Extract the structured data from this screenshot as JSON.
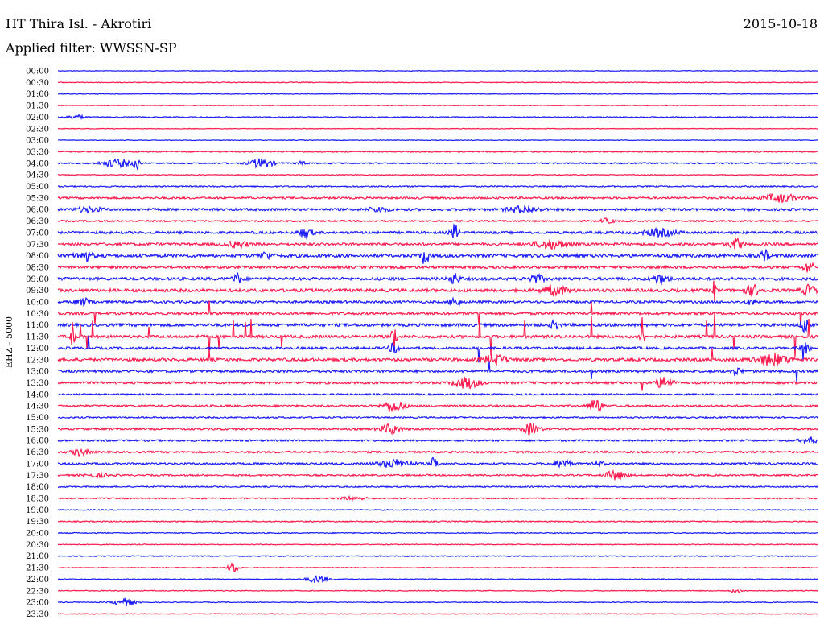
{
  "header": {
    "station": "HT Thira Isl. - Akrotiri",
    "date": "2015-10-18",
    "filter": "Applied filter: WWSSN-SP"
  },
  "chart_data": {
    "type": "line",
    "title": "HT Thira Isl. - Akrotiri",
    "ylabel": "EHZ - 5000",
    "row_labels": [
      "00:00",
      "00:30",
      "01:00",
      "01:30",
      "02:00",
      "02:30",
      "03:00",
      "03:30",
      "04:00",
      "04:30",
      "05:00",
      "05:30",
      "06:00",
      "06:30",
      "07:00",
      "07:30",
      "08:00",
      "08:30",
      "09:00",
      "09:30",
      "10:00",
      "10:30",
      "11:00",
      "11:30",
      "12:00",
      "12:30",
      "13:00",
      "13:30",
      "14:00",
      "14:30",
      "15:00",
      "15:30",
      "16:00",
      "16:30",
      "17:00",
      "17:30",
      "18:00",
      "18:30",
      "19:00",
      "19:30",
      "20:00",
      "20:30",
      "21:00",
      "21:30",
      "22:00",
      "22:30",
      "23:00",
      "23:30"
    ],
    "colors": {
      "even": "#1a1aff",
      "odd": "#ff1a4d"
    },
    "noise_level": [
      0.4,
      0.5,
      0.4,
      0.4,
      0.6,
      0.4,
      0.4,
      0.7,
      0.8,
      0.5,
      0.8,
      1.2,
      1.5,
      1.0,
      1.5,
      1.6,
      2.0,
      1.6,
      1.8,
      1.9,
      1.5,
      1.5,
      1.8,
      1.8,
      1.5,
      1.8,
      1.5,
      1.4,
      1.0,
      1.2,
      0.9,
      1.2,
      1.1,
      1.2,
      1.2,
      1.0,
      0.8,
      0.8,
      0.6,
      0.7,
      0.6,
      0.5,
      0.6,
      0.5,
      0.5,
      0.5,
      0.5,
      0.5
    ],
    "events": [
      [
        4,
        95,
        2.5,
        10
      ],
      [
        8,
        145,
        5,
        18
      ],
      [
        8,
        170,
        12,
        3
      ],
      [
        8,
        325,
        6,
        14
      ],
      [
        8,
        375,
        2,
        6
      ],
      [
        11,
        970,
        5,
        20
      ],
      [
        12,
        110,
        3,
        15
      ],
      [
        12,
        470,
        3,
        12
      ],
      [
        12,
        650,
        4,
        18
      ],
      [
        13,
        755,
        3,
        8
      ],
      [
        14,
        380,
        6,
        8
      ],
      [
        14,
        565,
        10,
        5
      ],
      [
        14,
        820,
        4,
        20
      ],
      [
        15,
        295,
        4,
        12
      ],
      [
        15,
        685,
        5,
        20
      ],
      [
        15,
        915,
        7,
        8
      ],
      [
        16,
        105,
        6,
        10
      ],
      [
        16,
        330,
        4,
        8
      ],
      [
        16,
        528,
        10,
        5
      ],
      [
        16,
        950,
        6,
        6
      ],
      [
        17,
        1005,
        7,
        6
      ],
      [
        18,
        295,
        7,
        5
      ],
      [
        18,
        565,
        7,
        6
      ],
      [
        18,
        665,
        5,
        10
      ],
      [
        18,
        820,
        5,
        10
      ],
      [
        19,
        690,
        6,
        15
      ],
      [
        19,
        935,
        6,
        10
      ],
      [
        19,
        1005,
        6,
        8
      ],
      [
        19,
        888,
        14,
        2
      ],
      [
        20,
        565,
        6,
        6
      ],
      [
        20,
        105,
        4,
        10
      ],
      [
        20,
        935,
        3,
        8
      ],
      [
        22,
        690,
        5,
        6
      ],
      [
        22,
        1000,
        10,
        5
      ],
      [
        23,
        490,
        14,
        3
      ],
      [
        23,
        798,
        12,
        3
      ],
      [
        23,
        90,
        10,
        3
      ],
      [
        24,
        490,
        6,
        6
      ],
      [
        24,
        1000,
        6,
        6
      ],
      [
        25,
        615,
        6,
        14
      ],
      [
        25,
        960,
        7,
        20
      ],
      [
        26,
        915,
        5,
        6
      ],
      [
        27,
        580,
        7,
        15
      ],
      [
        27,
        825,
        7,
        10
      ],
      [
        29,
        490,
        7,
        12
      ],
      [
        29,
        740,
        9,
        8
      ],
      [
        31,
        485,
        6,
        12
      ],
      [
        31,
        660,
        7,
        10
      ],
      [
        32,
        1005,
        4,
        10
      ],
      [
        33,
        100,
        4,
        10
      ],
      [
        34,
        490,
        5,
        20
      ],
      [
        34,
        540,
        9,
        4
      ],
      [
        34,
        700,
        5,
        10
      ],
      [
        34,
        745,
        3,
        6
      ],
      [
        35,
        765,
        6,
        12
      ],
      [
        35,
        120,
        2,
        16
      ],
      [
        37,
        440,
        2,
        15
      ],
      [
        43,
        290,
        7,
        6
      ],
      [
        44,
        395,
        5,
        12
      ],
      [
        45,
        915,
        2,
        8
      ],
      [
        46,
        155,
        5,
        12
      ]
    ],
    "spikes": [
      [
        23,
        90,
        18
      ],
      [
        23,
        100,
        14
      ],
      [
        23,
        108,
        16
      ],
      [
        23,
        115,
        20
      ],
      [
        23,
        185,
        12
      ],
      [
        23,
        260,
        22
      ],
      [
        23,
        272,
        16
      ],
      [
        23,
        290,
        20
      ],
      [
        23,
        305,
        18
      ],
      [
        23,
        312,
        22
      ],
      [
        23,
        350,
        14
      ],
      [
        23,
        490,
        18
      ],
      [
        23,
        596,
        28
      ],
      [
        23,
        610,
        24
      ],
      [
        23,
        652,
        20
      ],
      [
        23,
        735,
        26
      ],
      [
        23,
        798,
        24
      ],
      [
        23,
        878,
        20
      ],
      [
        23,
        888,
        30
      ],
      [
        23,
        912,
        16
      ],
      [
        23,
        988,
        26
      ],
      [
        23,
        1005,
        22
      ],
      [
        21,
        118,
        14
      ],
      [
        21,
        260,
        16
      ],
      [
        21,
        595,
        14
      ],
      [
        21,
        735,
        14
      ],
      [
        21,
        995,
        18
      ],
      [
        24,
        110,
        16
      ],
      [
        24,
        595,
        18
      ],
      [
        24,
        998,
        16
      ],
      [
        25,
        260,
        10
      ],
      [
        25,
        885,
        14
      ],
      [
        26,
        735,
        10
      ],
      [
        26,
        608,
        12
      ],
      [
        26,
        990,
        14
      ],
      [
        27,
        798,
        10
      ]
    ]
  }
}
